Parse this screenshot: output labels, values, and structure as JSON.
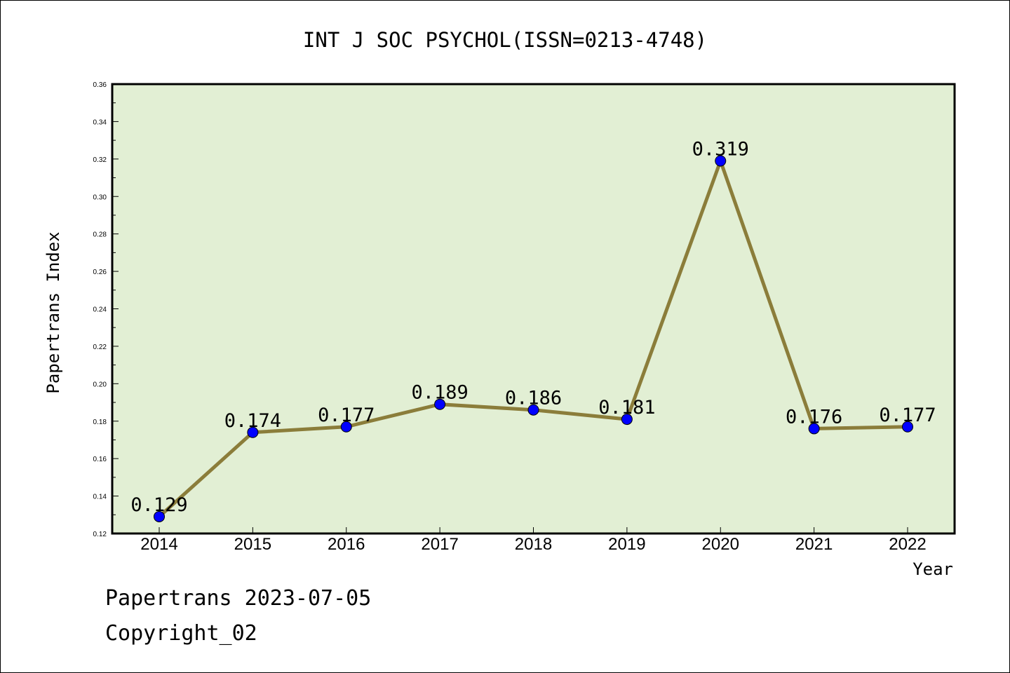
{
  "chart_data": {
    "type": "line",
    "title": "INT J SOC PSYCHOL(ISSN=0213-4748)",
    "xlabel": "Year",
    "ylabel": "Papertrans Index",
    "categories": [
      "2014",
      "2015",
      "2016",
      "2017",
      "2018",
      "2019",
      "2020",
      "2021",
      "2022"
    ],
    "values": [
      0.129,
      0.174,
      0.177,
      0.189,
      0.186,
      0.181,
      0.319,
      0.176,
      0.177
    ],
    "data_labels": [
      "0.129",
      "0.174",
      "0.177",
      "0.189",
      "0.186",
      "0.181",
      "0.319",
      "0.176",
      "0.177"
    ],
    "ylim": [
      0.12,
      0.36
    ],
    "yticks": [
      "0.12",
      "0.14",
      "0.16",
      "0.18",
      "0.20",
      "0.22",
      "0.24",
      "0.26",
      "0.28",
      "0.30",
      "0.32",
      "0.34",
      "0.36"
    ],
    "grid": false,
    "legend": "none",
    "colors": {
      "line": "#8B7D3A",
      "marker": "#0000FF",
      "plot_background": "#E2EFD4"
    }
  },
  "footer": {
    "date_line": "Papertrans 2023-07-05",
    "copyright_line": "Copyright_02"
  }
}
